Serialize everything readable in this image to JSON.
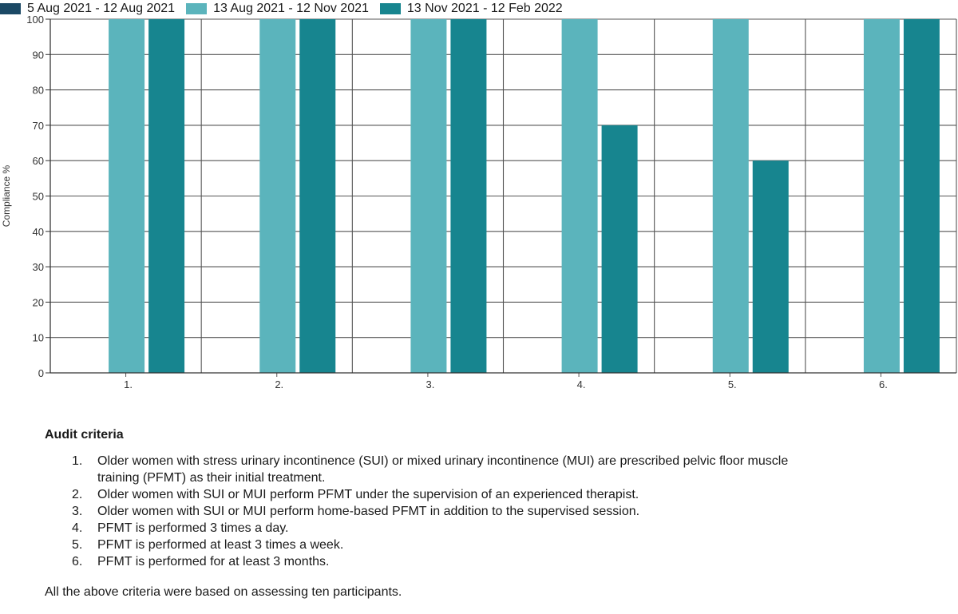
{
  "chart_data": {
    "type": "bar",
    "categories": [
      "1.",
      "2.",
      "3.",
      "4.",
      "5.",
      "6."
    ],
    "series": [
      {
        "name": "5 Aug 2021 - 12 Aug 2021",
        "color": "#1b4965",
        "values": [
          0,
          0,
          0,
          0,
          0,
          0
        ]
      },
      {
        "name": "13 Aug 2021 - 12 Nov 2021",
        "color": "#5bb4bc",
        "values": [
          100,
          100,
          100,
          100,
          100,
          100
        ]
      },
      {
        "name": "13 Nov 2021 - 12 Feb 2022",
        "color": "#17858f",
        "values": [
          100,
          100,
          100,
          70,
          60,
          100
        ]
      }
    ],
    "ylabel": "Compliance %",
    "xlabel": "",
    "ylim": [
      0,
      100
    ],
    "yticks": [
      0,
      10,
      20,
      30,
      40,
      50,
      60,
      70,
      80,
      90,
      100
    ],
    "grid": true,
    "legend": "top-left"
  },
  "criteria": {
    "title": "Audit criteria",
    "items": [
      {
        "num": "1.",
        "text": "Older women with stress urinary incontinence (SUI) or mixed urinary incontinence (MUI) are prescribed pelvic floor muscle training (PFMT) as their initial treatment."
      },
      {
        "num": "2.",
        "text": "Older women with SUI or MUI perform PFMT under the supervision of an experienced therapist."
      },
      {
        "num": "3.",
        "text": "Older women with SUI or MUI perform home-based PFMT in addition to the supervised session."
      },
      {
        "num": "4.",
        "text": "PFMT is performed 3 times a day."
      },
      {
        "num": "5.",
        "text": "PFMT is performed at least 3 times a week."
      },
      {
        "num": "6.",
        "text": "PFMT is performed for at least 3 months."
      }
    ],
    "footer": "All the above criteria were based on assessing ten participants."
  }
}
